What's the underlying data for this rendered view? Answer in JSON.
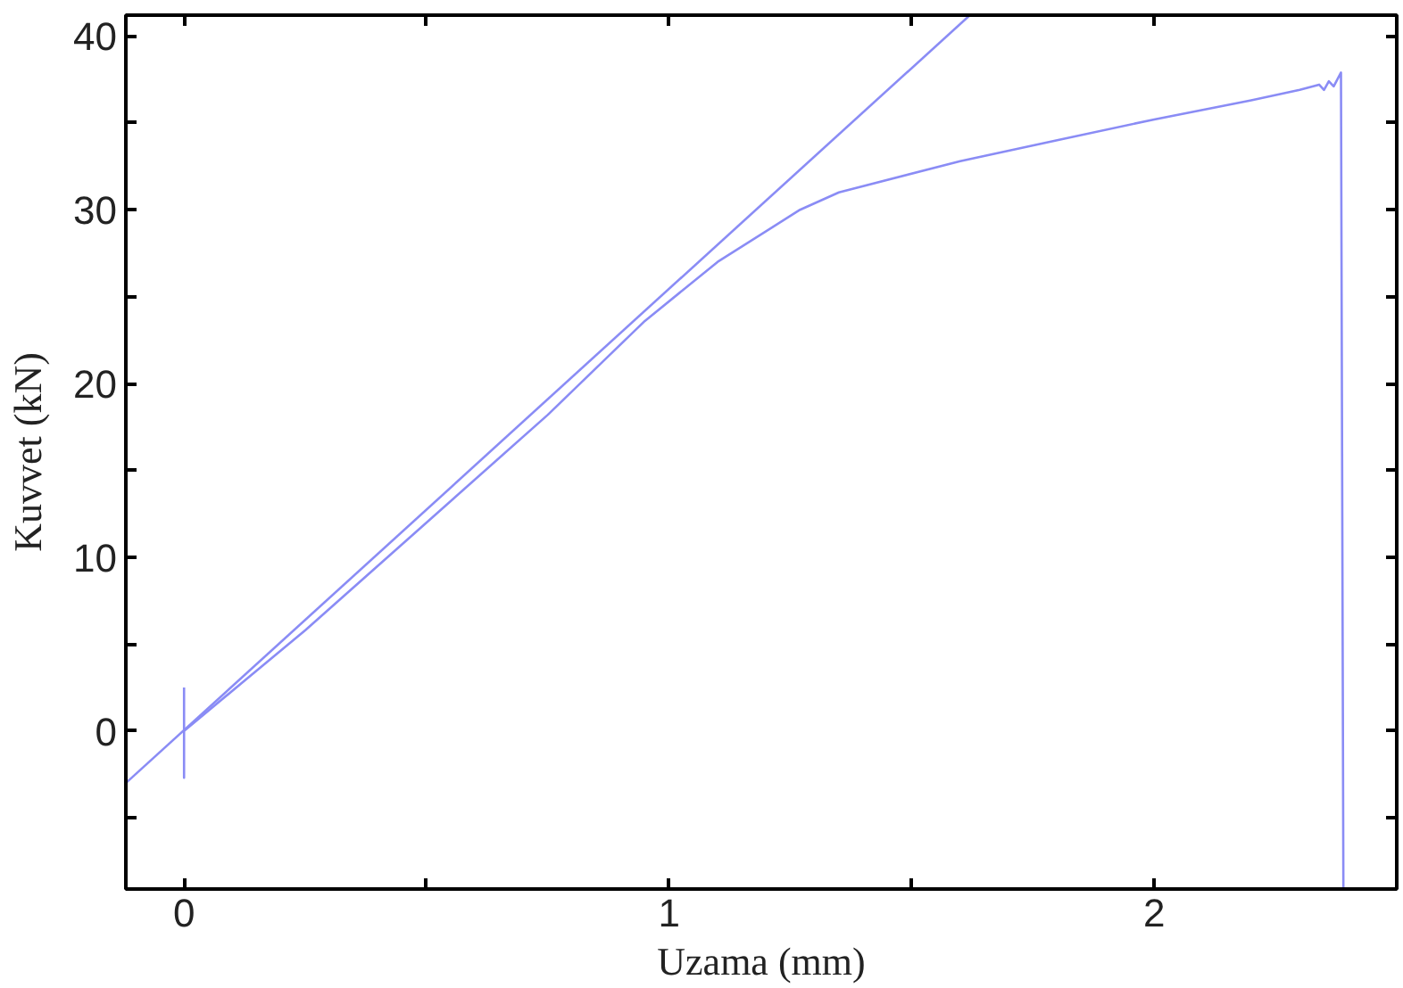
{
  "chart_data": {
    "type": "line",
    "xlabel": "Uzama (mm)",
    "ylabel": "Kuvvet (kN)",
    "xlim": [
      -0.12,
      2.5
    ],
    "ylim": [
      -9.1,
      41.2
    ],
    "xticks": [
      0,
      {
        "value": 0.5,
        "label": null
      },
      1,
      {
        "value": 1.5,
        "label": null
      },
      2,
      {
        "value": 2.5,
        "label": null
      }
    ],
    "yticks": [
      {
        "value": -5,
        "label": null
      },
      0,
      {
        "value": 5,
        "label": null
      },
      10,
      {
        "value": 15,
        "label": null
      },
      20,
      {
        "value": 25,
        "label": null
      },
      30,
      {
        "value": 35,
        "label": null
      },
      40
    ],
    "grid": false,
    "series": [
      {
        "color": "#8a8cf5",
        "x": [
          0,
          0,
          0,
          0.25,
          0.5,
          0.75,
          0.95,
          1.1,
          1.27,
          1.35,
          1.6,
          1.8,
          2.0,
          2.2,
          2.3,
          2.34,
          2.35,
          2.36,
          2.37,
          2.385,
          2.39
        ],
        "values": [
          2.5,
          -2.7,
          0,
          5.8,
          12,
          18.2,
          23.6,
          27,
          30,
          31,
          32.8,
          34,
          35.2,
          36.3,
          36.9,
          37.2,
          36.9,
          37.4,
          37.1,
          37.9,
          -9.1
        ]
      },
      {
        "type": "line",
        "color": "#8a8cf5",
        "x": [
          -0.12,
          1.62
        ],
        "values": [
          -3,
          41.2
        ]
      }
    ]
  }
}
